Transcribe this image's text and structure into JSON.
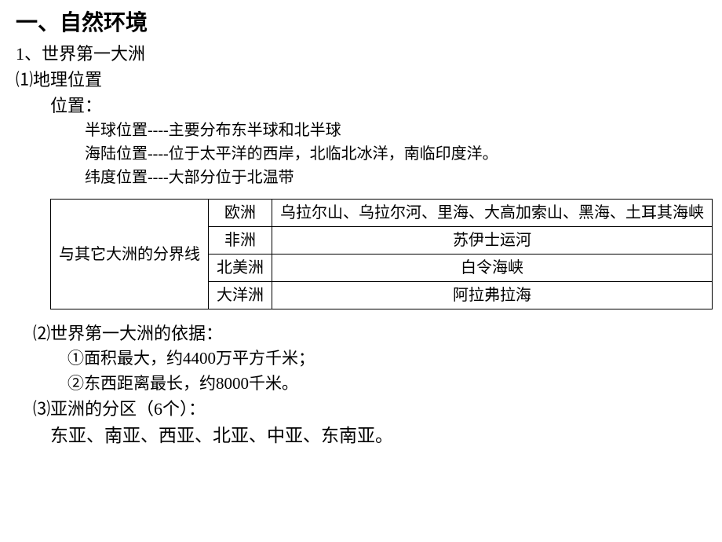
{
  "heading": "一、自然环境",
  "sec1": {
    "num": "1、世界第一大洲",
    "sub1": "⑴地理位置",
    "posLabel": "位置：",
    "pos1": "半球位置----主要分布东半球和北半球",
    "pos2": "海陆位置----位于太平洋的西岸，北临北冰洋，南临印度洋。",
    "pos3": "纬度位置----大部分位于北温带"
  },
  "table": {
    "rowHeader": "与其它大洲的分界线",
    "rows": [
      {
        "cont": "欧洲",
        "desc": "乌拉尔山、乌拉尔河、里海、大高加索山、黑海、土耳其海峡"
      },
      {
        "cont": "非洲",
        "desc": "苏伊士运河"
      },
      {
        "cont": "北美洲",
        "desc": "白令海峡"
      },
      {
        "cont": "大洋洲",
        "desc": "阿拉弗拉海"
      }
    ]
  },
  "sec2": {
    "sub2": "⑵世界第一大洲的依据：",
    "d1": "①面积最大，约4400万平方千米；",
    "d2": "②东西距离最长，约8000千米。",
    "sub3": "⑶亚洲的分区（6个）：",
    "regions": "东亚、南亚、西亚、北亚、中亚、东南亚。"
  }
}
